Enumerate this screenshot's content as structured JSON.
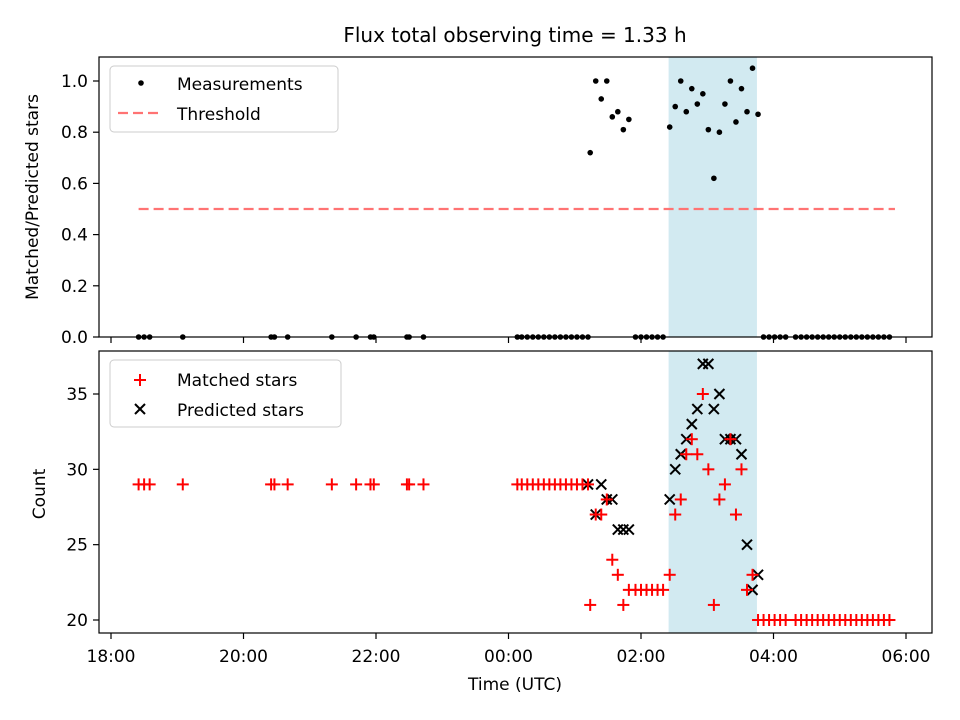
{
  "chart_data": [
    {
      "type": "scatter",
      "title": "Flux total observing time = 1.33 h",
      "ylabel": "Matched/Predicted stars",
      "ylim": [
        0,
        1.1
      ],
      "yticks": [
        0.0,
        0.2,
        0.4,
        0.6,
        0.8,
        1.0
      ],
      "ytick_labels": [
        "0.0",
        "0.2",
        "0.4",
        "0.6",
        "0.8",
        "1.0"
      ],
      "legend_position": "top-left",
      "legend": [
        "Measurements",
        "Threshold"
      ],
      "threshold": {
        "value": 0.5,
        "x_start": "18:25",
        "x_end": "05:50"
      },
      "series": [
        {
          "name": "Measurements",
          "x": [
            "18:25",
            "18:30",
            "18:35",
            "19:05",
            "20:25",
            "20:28",
            "20:40",
            "21:20",
            "21:42",
            "21:55",
            "21:58",
            "22:28",
            "22:30",
            "22:43",
            "00:08",
            "00:12",
            "00:17",
            "00:22",
            "00:27",
            "00:32",
            "00:37",
            "00:42",
            "00:47",
            "00:52",
            "00:57",
            "01:02",
            "01:07",
            "01:12",
            "01:14",
            "01:19",
            "01:24",
            "01:29",
            "01:34",
            "01:39",
            "01:44",
            "01:49",
            "01:55",
            "02:00",
            "02:05",
            "02:10",
            "02:15",
            "02:20",
            "02:26",
            "02:31",
            "02:36",
            "02:41",
            "02:46",
            "02:51",
            "02:56",
            "03:01",
            "03:06",
            "03:11",
            "03:16",
            "03:21",
            "03:26",
            "03:31",
            "03:36",
            "03:41",
            "03:46",
            "03:51",
            "03:56",
            "04:01",
            "04:06",
            "04:11",
            "04:20",
            "04:25",
            "04:30",
            "04:35",
            "04:40",
            "04:45",
            "04:50",
            "04:55",
            "05:00",
            "05:05",
            "05:10",
            "05:15",
            "05:20",
            "05:25",
            "05:30",
            "05:35",
            "05:40",
            "05:45"
          ],
          "y": [
            0,
            0,
            0,
            0,
            0,
            0,
            0,
            0,
            0,
            0,
            0,
            0,
            0,
            0,
            0,
            0,
            0,
            0,
            0,
            0,
            0,
            0,
            0,
            0,
            0,
            0,
            0,
            0,
            0.72,
            1.0,
            0.93,
            1.0,
            0.86,
            0.88,
            0.81,
            0.85,
            0,
            0,
            0,
            0,
            0,
            0,
            0.82,
            0.9,
            1.0,
            0.88,
            0.97,
            0.91,
            0.95,
            0.81,
            0.62,
            0.8,
            0.91,
            1.0,
            0.84,
            0.97,
            0.88,
            1.05,
            0.87,
            0,
            0,
            0,
            0,
            0,
            0,
            0,
            0,
            0,
            0,
            0,
            0,
            0,
            0,
            0,
            0,
            0,
            0,
            0,
            0,
            0,
            0,
            0
          ]
        }
      ],
      "highlight_span": {
        "x_start": "02:25",
        "x_end": "03:45",
        "color": "#add8e6"
      }
    },
    {
      "type": "scatter",
      "xlabel": "Time (UTC)",
      "ylabel": "Count",
      "ylim": [
        19.2,
        37.5
      ],
      "yticks": [
        20,
        25,
        30,
        35
      ],
      "ytick_labels": [
        "20",
        "25",
        "30",
        "35"
      ],
      "xticks": [
        "18:00",
        "20:00",
        "22:00",
        "00:00",
        "02:00",
        "04:00",
        "06:00"
      ],
      "legend_position": "top-left",
      "legend": [
        "Matched stars",
        "Predicted stars"
      ],
      "series": [
        {
          "name": "Matched stars",
          "x": [
            "18:25",
            "18:30",
            "18:35",
            "19:05",
            "20:25",
            "20:28",
            "20:40",
            "21:20",
            "21:42",
            "21:55",
            "21:58",
            "22:28",
            "22:30",
            "22:43",
            "00:08",
            "00:12",
            "00:17",
            "00:22",
            "00:27",
            "00:32",
            "00:37",
            "00:42",
            "00:47",
            "00:52",
            "00:57",
            "01:02",
            "01:07",
            "01:12",
            "01:14",
            "01:19",
            "01:24",
            "01:29",
            "01:34",
            "01:39",
            "01:44",
            "01:49",
            "01:55",
            "02:00",
            "02:05",
            "02:10",
            "02:15",
            "02:20",
            "02:26",
            "02:31",
            "02:36",
            "02:41",
            "02:46",
            "02:51",
            "02:56",
            "03:01",
            "03:06",
            "03:11",
            "03:16",
            "03:21",
            "03:26",
            "03:31",
            "03:36",
            "03:41",
            "03:46",
            "03:51",
            "03:56",
            "04:01",
            "04:06",
            "04:11",
            "04:20",
            "04:25",
            "04:30",
            "04:35",
            "04:40",
            "04:45",
            "04:50",
            "04:55",
            "05:00",
            "05:05",
            "05:10",
            "05:15",
            "05:20",
            "05:25",
            "05:30",
            "05:35",
            "05:40",
            "05:45"
          ],
          "y": [
            29,
            29,
            29,
            29,
            29,
            29,
            29,
            29,
            29,
            29,
            29,
            29,
            29,
            29,
            29,
            29,
            29,
            29,
            29,
            29,
            29,
            29,
            29,
            29,
            29,
            29,
            29,
            29,
            21,
            27,
            27,
            28,
            24,
            23,
            21,
            22,
            22,
            22,
            22,
            22,
            22,
            22,
            23,
            27,
            28,
            31,
            32,
            31,
            35,
            30,
            21,
            28,
            29,
            32,
            27,
            30,
            22,
            23,
            20,
            20,
            20,
            20,
            20,
            20,
            20,
            20,
            20,
            20,
            20,
            20,
            20,
            20,
            20,
            20,
            20,
            20,
            20,
            20,
            20,
            20,
            20,
            20
          ]
        },
        {
          "name": "Predicted stars",
          "x": [
            "01:12",
            "01:19",
            "01:24",
            "01:29",
            "01:34",
            "01:39",
            "01:44",
            "01:49",
            "02:26",
            "02:31",
            "02:36",
            "02:41",
            "02:46",
            "02:51",
            "02:56",
            "03:01",
            "03:06",
            "03:11",
            "03:16",
            "03:21",
            "03:26",
            "03:31",
            "03:36",
            "03:41",
            "03:46"
          ],
          "y": [
            29,
            27,
            29,
            28,
            28,
            26,
            26,
            26,
            28,
            30,
            31,
            32,
            33,
            34,
            37,
            37,
            34,
            35,
            32,
            32,
            32,
            31,
            25,
            22,
            23
          ]
        }
      ],
      "highlight_span": {
        "x_start": "02:25",
        "x_end": "03:45",
        "color": "#add8e6"
      }
    }
  ]
}
